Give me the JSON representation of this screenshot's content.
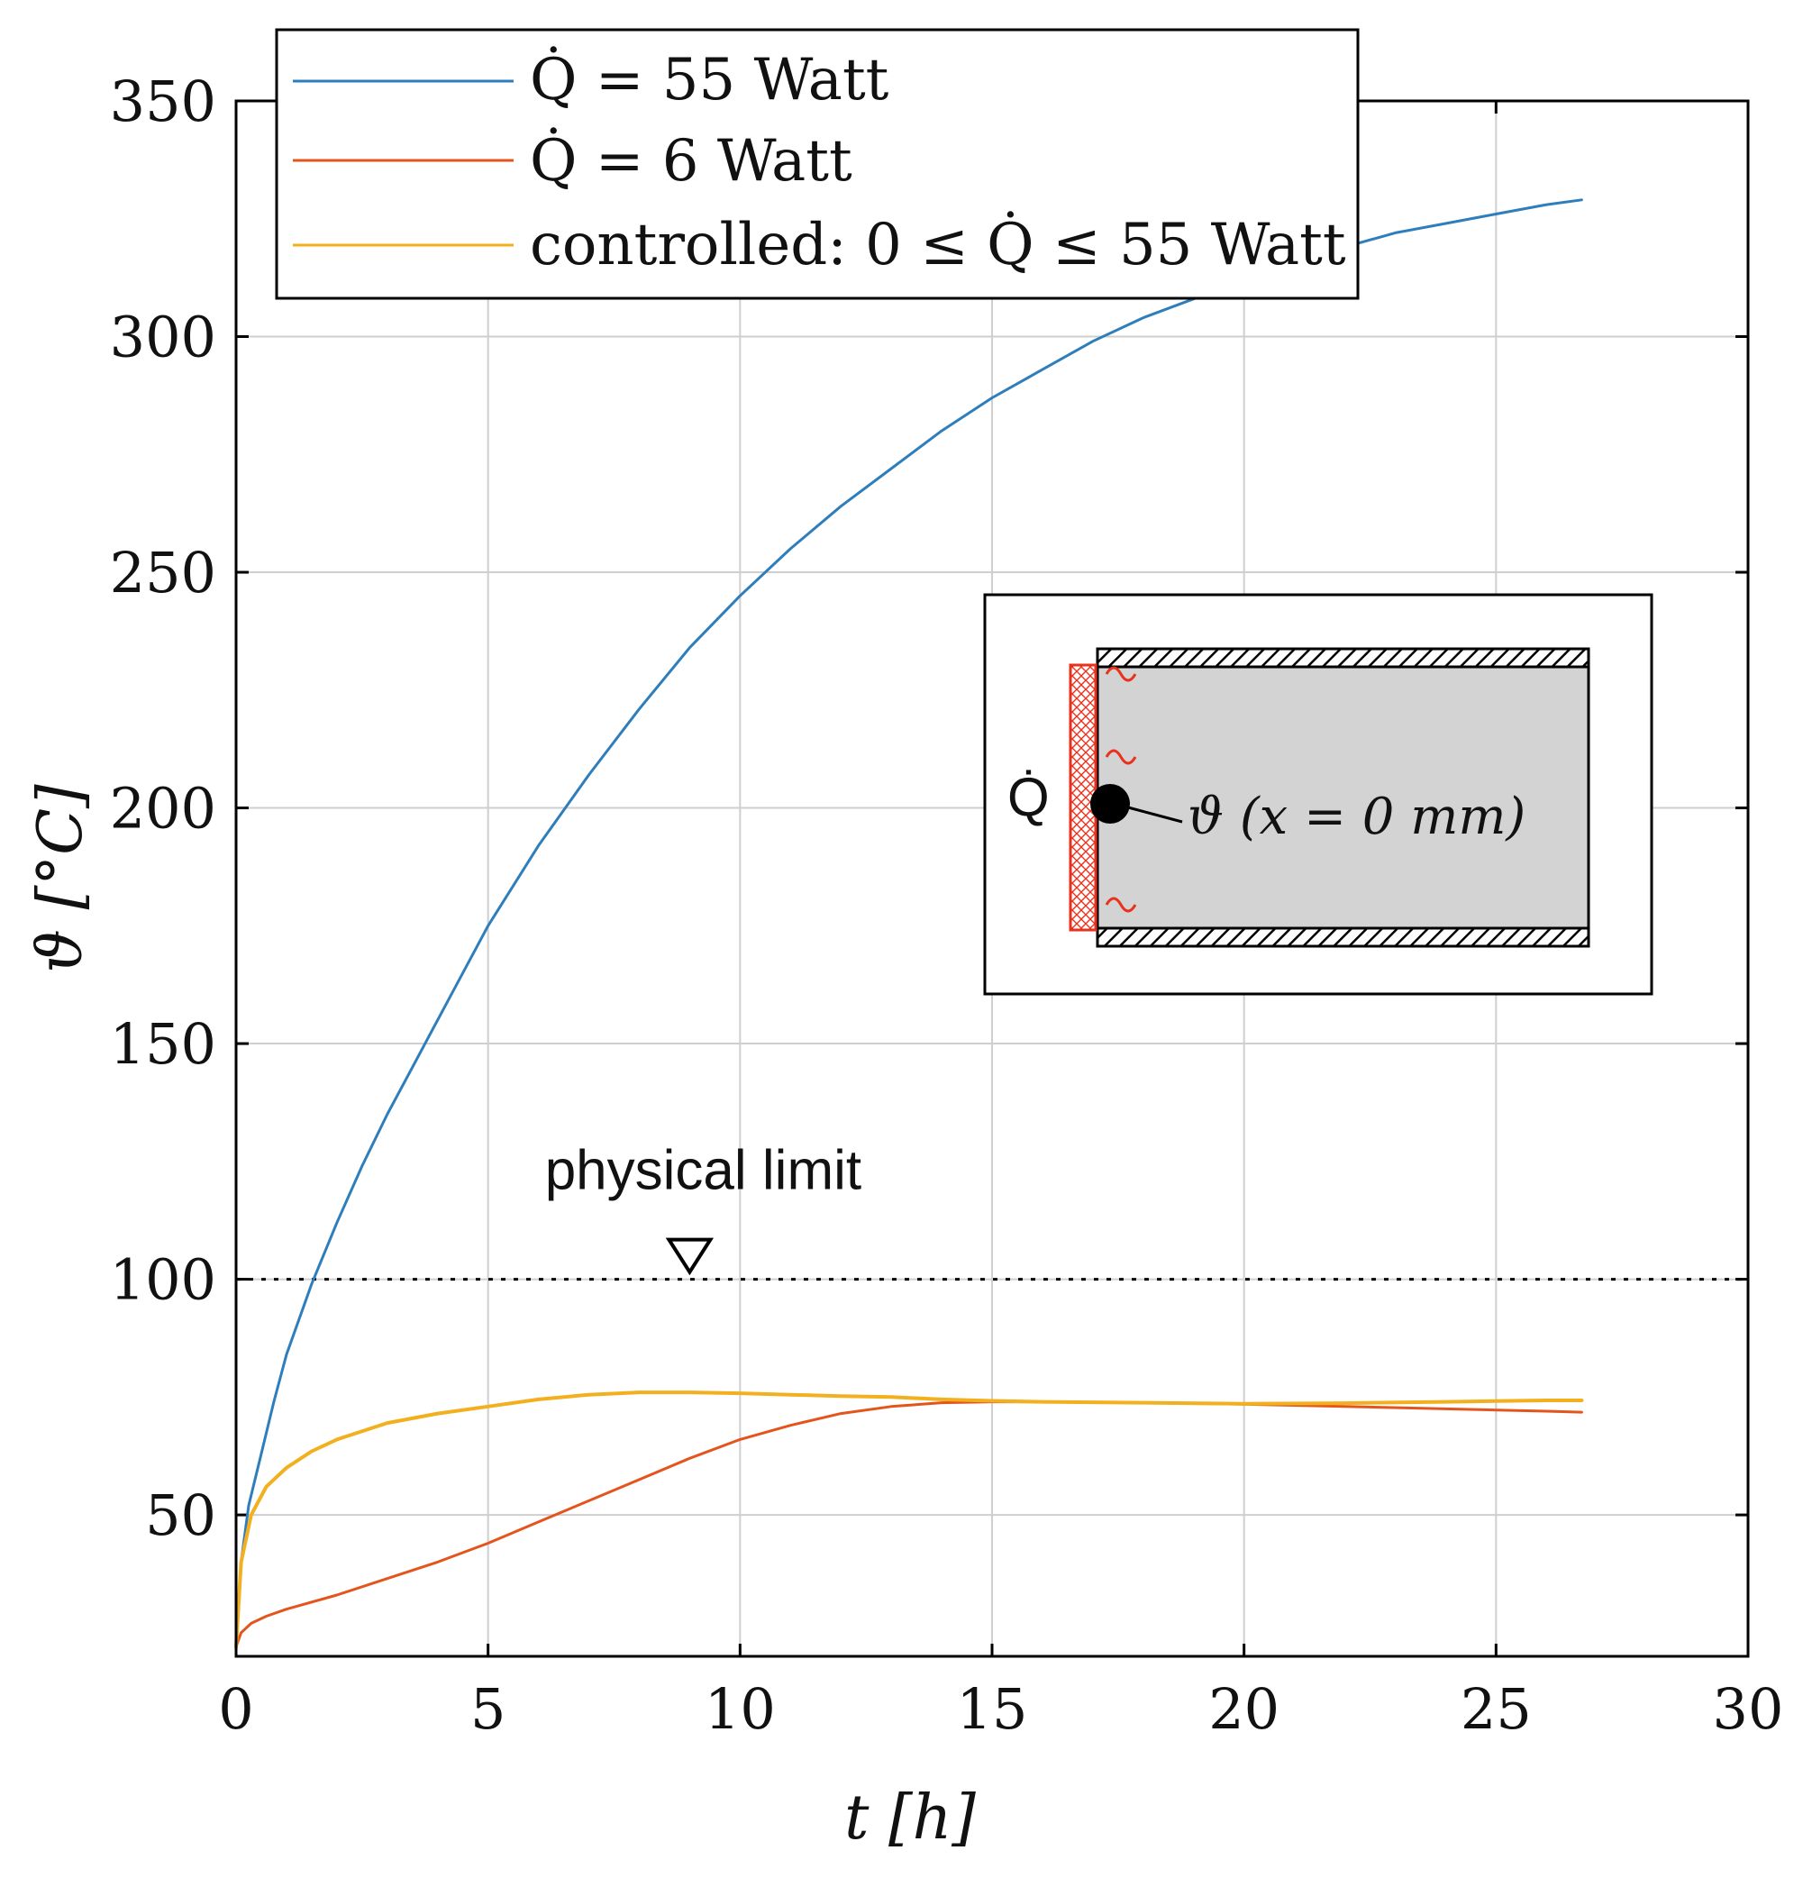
{
  "chart_data": {
    "type": "line",
    "xlabel": "t [h]",
    "ylabel": "ϑ [°C]",
    "xlim": [
      0,
      30
    ],
    "ylim": [
      20,
      350
    ],
    "xticks": [
      0,
      5,
      10,
      15,
      20,
      25,
      30
    ],
    "yticks": [
      50,
      100,
      150,
      200,
      250,
      300,
      350
    ],
    "grid": true,
    "legend_position": "top-left",
    "series": [
      {
        "name": "Q̇ = 55 Watt",
        "color": "#2E7EBC",
        "x": [
          0,
          0.1,
          0.25,
          0.5,
          0.75,
          1,
          1.5,
          2,
          2.5,
          3,
          3.5,
          4,
          5,
          6,
          7,
          8,
          9,
          10,
          11,
          12,
          13,
          14,
          15,
          16,
          17,
          18,
          19,
          20,
          21,
          22,
          23,
          24,
          25,
          26,
          26.7
        ],
        "y": [
          22,
          40,
          52,
          63,
          74,
          84,
          99,
          112,
          124,
          135,
          145,
          155,
          175,
          192,
          207,
          221,
          234,
          245,
          255,
          264,
          272,
          280,
          287,
          293,
          299,
          304,
          308,
          312,
          316,
          319,
          322,
          324,
          326,
          328,
          329
        ]
      },
      {
        "name": "Q̇ = 6 Watt",
        "color": "#E4551E",
        "x": [
          0,
          0.1,
          0.3,
          0.6,
          1,
          2,
          3,
          4,
          5,
          6,
          7,
          8,
          9,
          10,
          11,
          12,
          13,
          14,
          15,
          16,
          18,
          20,
          22,
          24,
          26,
          26.7
        ],
        "y": [
          22,
          25,
          27,
          28.5,
          30,
          33,
          36.5,
          40,
          44,
          48.5,
          53,
          57.5,
          62,
          66,
          69,
          71.5,
          73,
          73.8,
          74,
          74,
          73.8,
          73.5,
          73,
          72.5,
          72,
          71.8
        ]
      },
      {
        "name": "controlled: 0 ≤ Q̇ ≤ 55 Watt",
        "color": "#F2B01E",
        "x": [
          0,
          0.1,
          0.3,
          0.6,
          1,
          1.5,
          2,
          3,
          4,
          5,
          6,
          7,
          8,
          9,
          10,
          11,
          12,
          13,
          14,
          15,
          16,
          18,
          20,
          22,
          24,
          26,
          26.7
        ],
        "y": [
          22,
          40,
          50,
          56,
          60,
          63.5,
          66,
          69.5,
          71.5,
          73,
          74.5,
          75.5,
          76,
          76,
          75.8,
          75.5,
          75.2,
          75,
          74.5,
          74.2,
          74,
          73.8,
          73.6,
          73.7,
          74,
          74.3,
          74.3
        ]
      }
    ],
    "reference_line": {
      "y": 100,
      "style": "dotted",
      "color": "#000000"
    },
    "annotations": [
      {
        "text": "physical limit",
        "x": 9,
        "y": 100,
        "marker": "down-triangle"
      }
    ],
    "inset": {
      "heat_label": "Q̇",
      "sensor_label": "ϑ (x = 0 mm)"
    }
  }
}
